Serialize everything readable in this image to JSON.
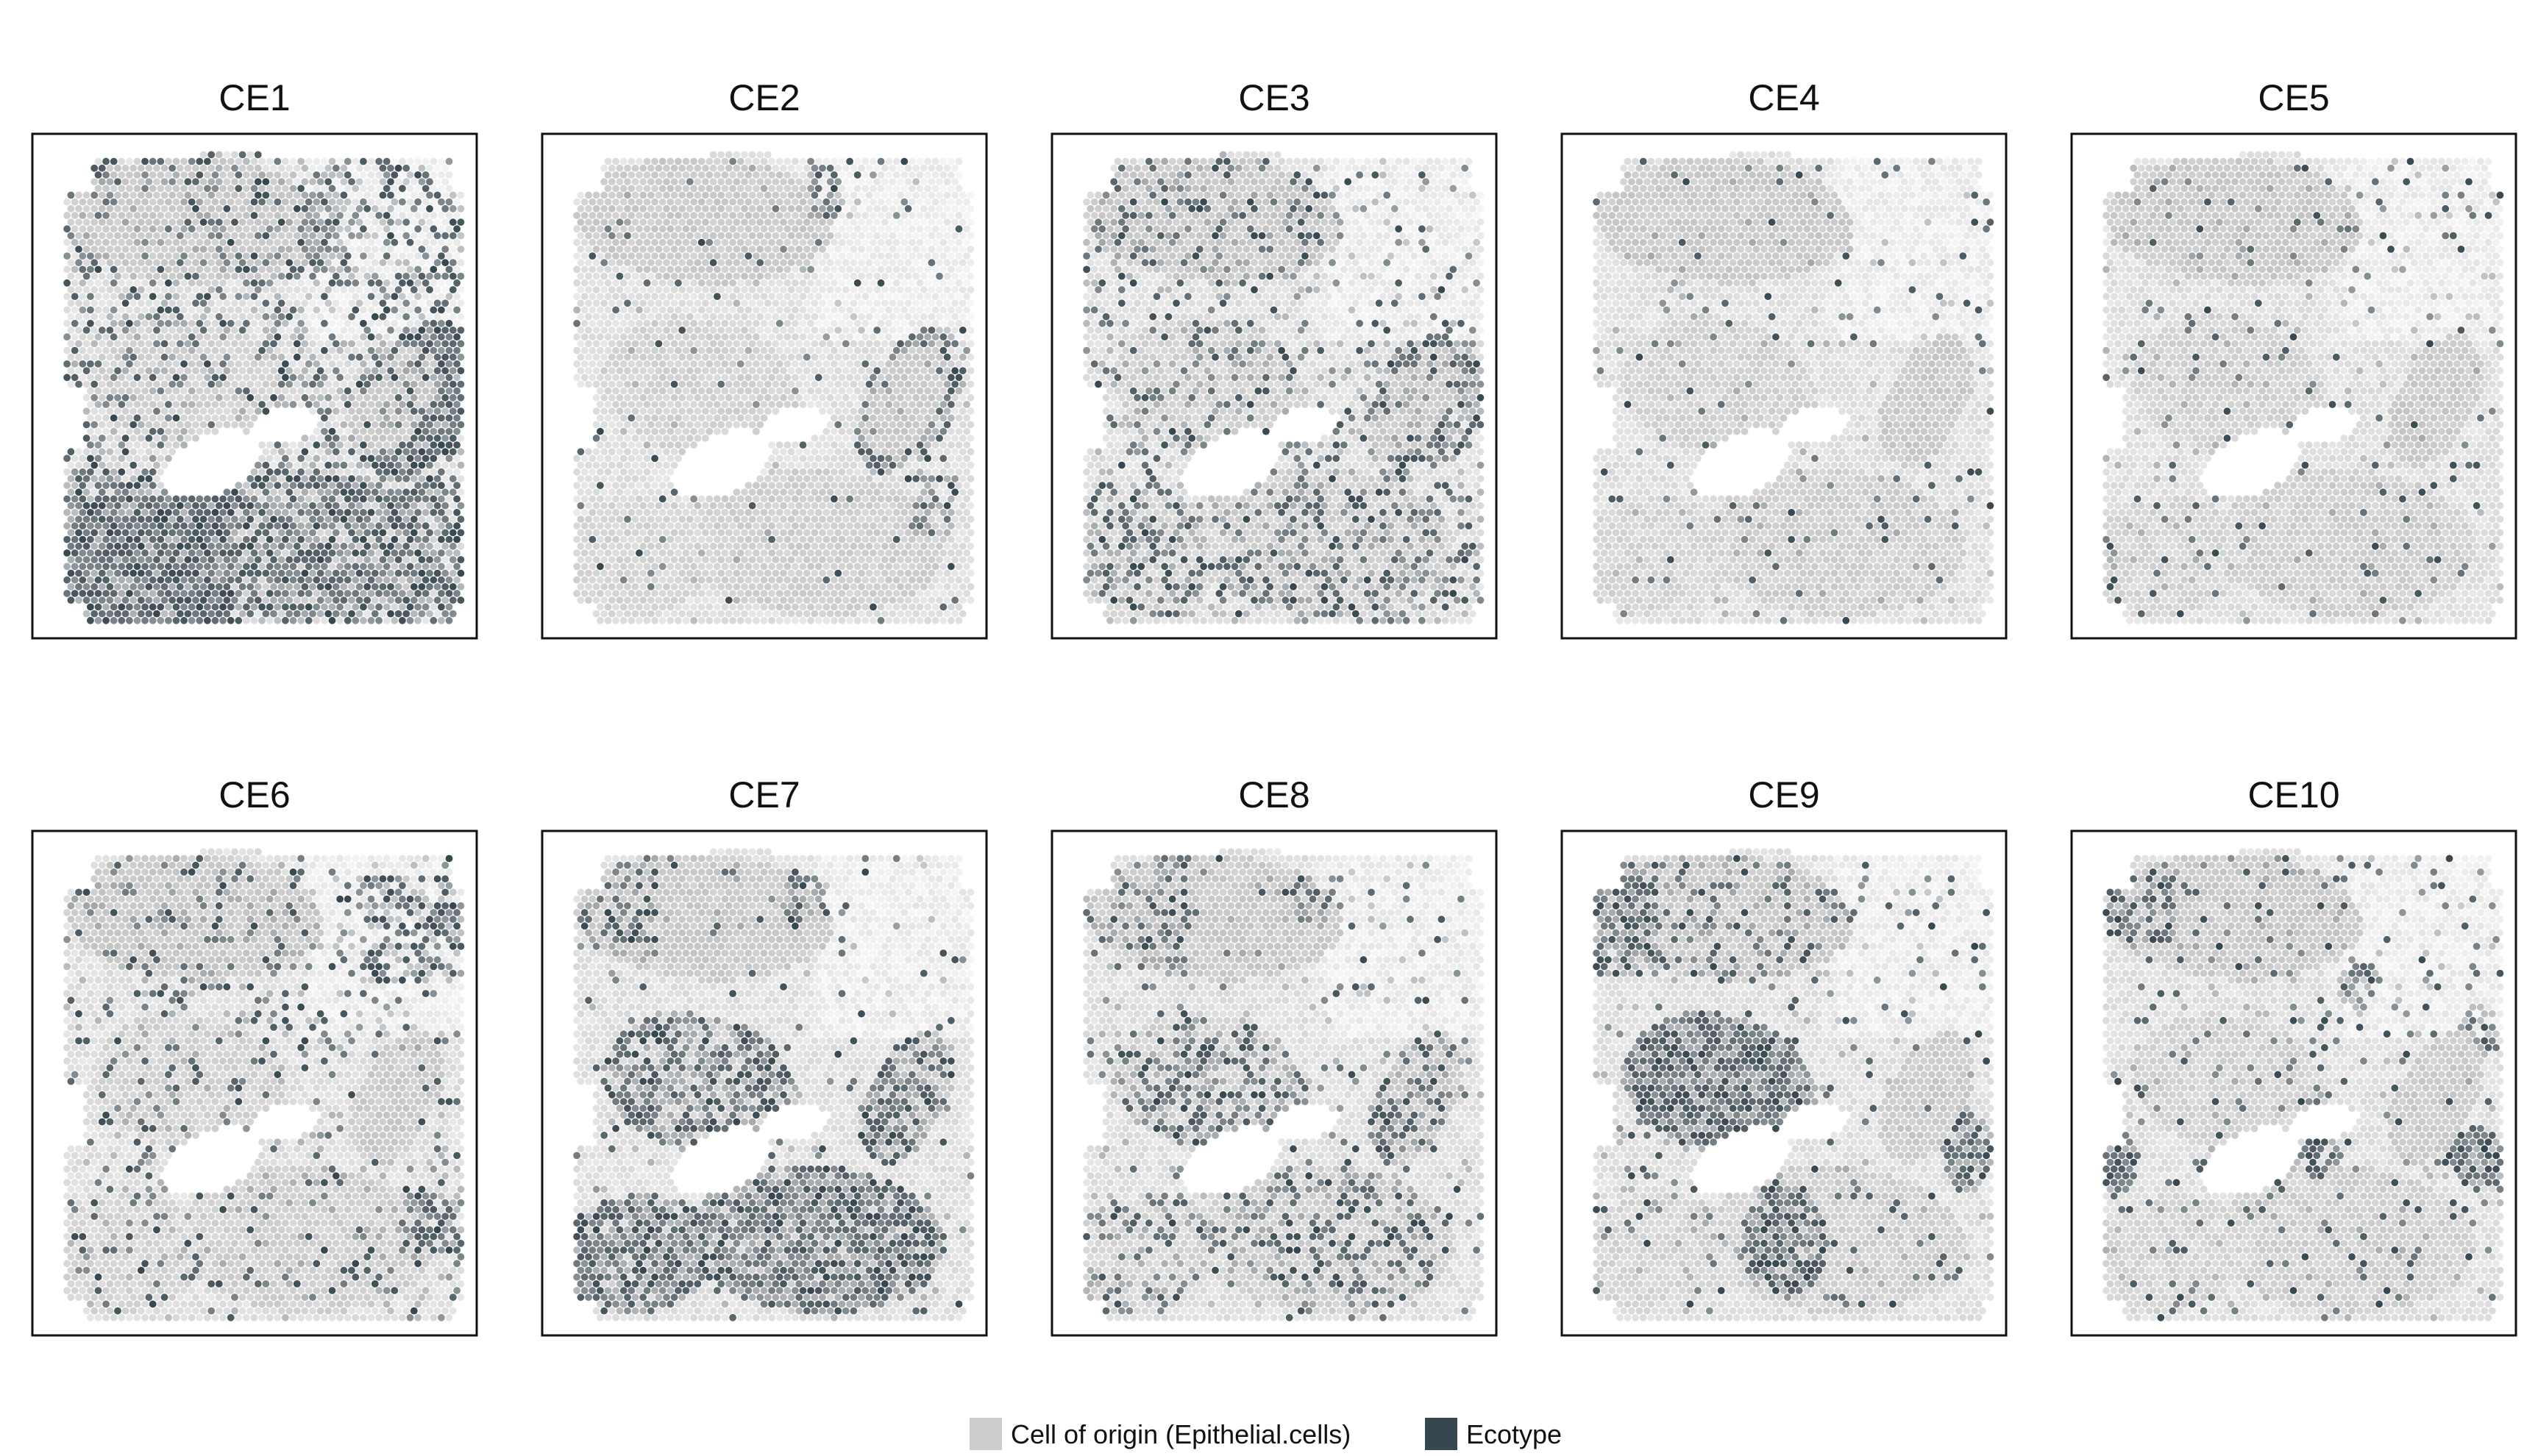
{
  "chart_data": {
    "type": "scatter",
    "title": "",
    "xlabel": "",
    "ylabel": "",
    "grid": false,
    "legend_placement": "bottom-center",
    "panels": [
      {
        "title": "CE1",
        "pattern": "CE1"
      },
      {
        "title": "CE2",
        "pattern": "CE2"
      },
      {
        "title": "CE3",
        "pattern": "CE3"
      },
      {
        "title": "CE4",
        "pattern": "CE4"
      },
      {
        "title": "CE5",
        "pattern": "CE5"
      },
      {
        "title": "CE6",
        "pattern": "CE6"
      },
      {
        "title": "CE7",
        "pattern": "CE7"
      },
      {
        "title": "CE8",
        "pattern": "CE8"
      },
      {
        "title": "CE9",
        "pattern": "CE9"
      },
      {
        "title": "CE10",
        "pattern": "CE10"
      }
    ],
    "legend": [
      {
        "label": "Cell of origin (Epithelial.cells)",
        "color": "#cccccc"
      },
      {
        "label": "Ecotype",
        "color": "#37474f"
      }
    ],
    "colors": {
      "low": "#cccccc",
      "high": "#37474f"
    }
  }
}
